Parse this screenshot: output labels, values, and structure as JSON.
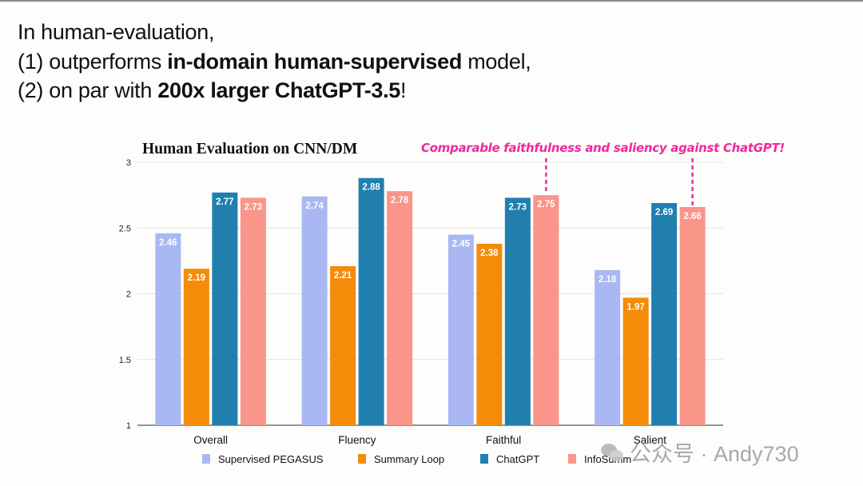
{
  "headline": {
    "line1": "In human-evaluation,",
    "line2_pre": "(1) outperforms ",
    "line2_bold": "in-domain human-supervised",
    "line2_post": " model,",
    "line3_pre": "(2) on par with ",
    "line3_bold": "200x larger ChatGPT-3.5",
    "line3_post": "!"
  },
  "annotation": {
    "text": "Comparable faithfulness and saliency against ChatGPT!",
    "color": "#ee2a9a",
    "points_to": [
      {
        "category": "Faithful",
        "series": "InfoSumm"
      },
      {
        "category": "Salient",
        "series": "InfoSumm"
      }
    ]
  },
  "watermark": {
    "text": "公众号 · Andy730",
    "icon": "wechat-icon"
  },
  "chart_data": {
    "type": "bar",
    "title": "Human Evaluation on CNN/DM",
    "xlabel": "",
    "ylabel": "",
    "ylim": [
      1,
      3
    ],
    "yticks": [
      1,
      1.5,
      2,
      2.5,
      3
    ],
    "ytick_labels": [
      "1",
      "1.5",
      "2",
      "2.5",
      "3"
    ],
    "grid": true,
    "legend_position": "bottom",
    "categories": [
      "Overall",
      "Fluency",
      "Faithful",
      "Salient"
    ],
    "series": [
      {
        "name": "Supervised PEGASUS",
        "color": "#a9b8f3",
        "values": [
          2.46,
          2.74,
          2.45,
          2.18
        ]
      },
      {
        "name": "Summary Loop",
        "color": "#f48c0a",
        "values": [
          2.19,
          2.21,
          2.38,
          1.97
        ]
      },
      {
        "name": "ChatGPT",
        "color": "#217fb0",
        "values": [
          2.77,
          2.88,
          2.73,
          2.69
        ]
      },
      {
        "name": "InfoSumm",
        "color": "#fa958a",
        "values": [
          2.73,
          2.78,
          2.75,
          2.66
        ]
      }
    ]
  }
}
